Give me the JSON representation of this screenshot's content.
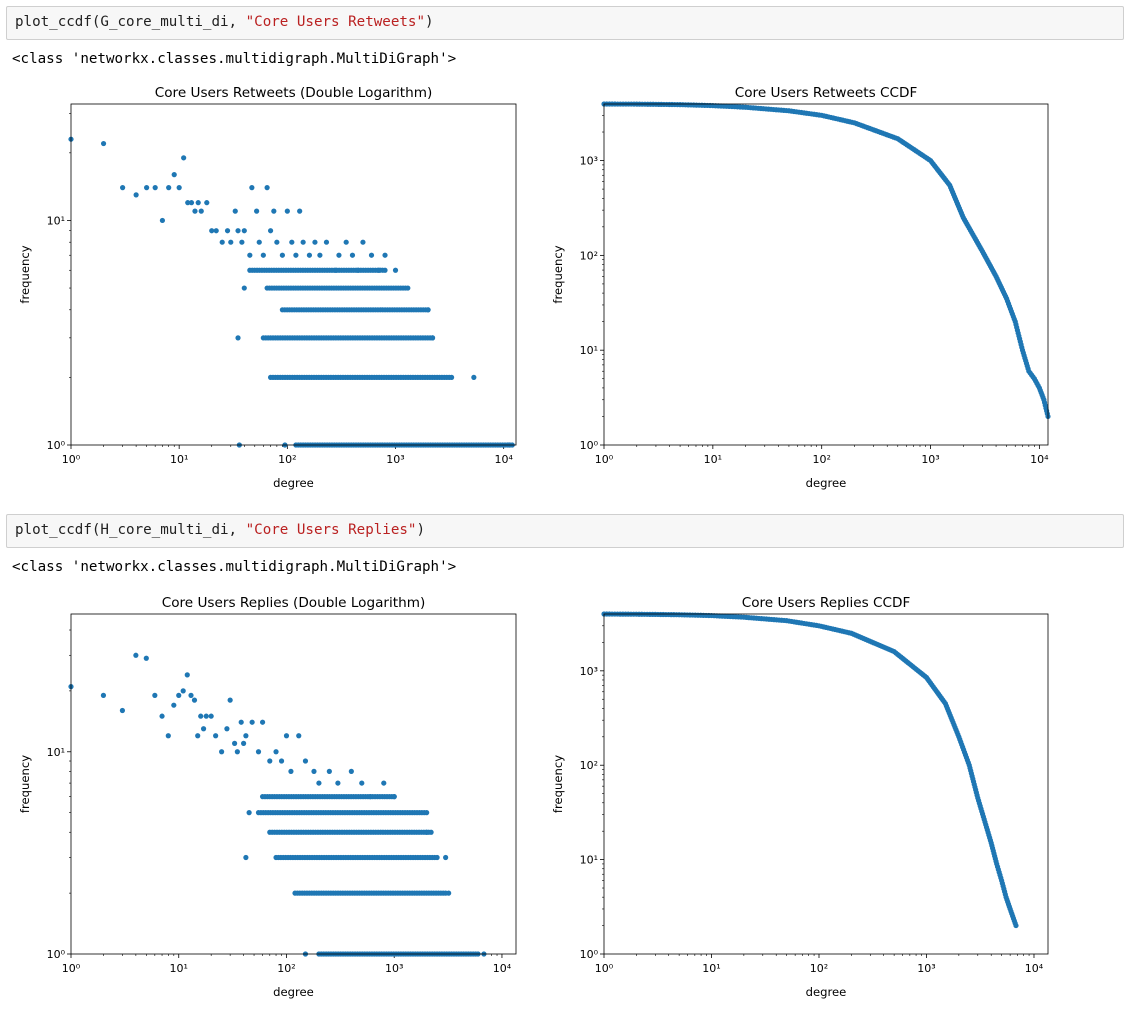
{
  "cells": [
    {
      "code_fn": "plot_ccdf(G_core_multi_di, ",
      "code_str": "\"Core Users Retweets\"",
      "code_end": ")",
      "output": "<class 'networkx.classes.multidigraph.MultiDiGraph'>"
    },
    {
      "code_fn": "plot_ccdf(H_core_multi_di, ",
      "code_str": "\"Core Users Replies\"",
      "code_end": ")",
      "output": "<class 'networkx.classes.multidigraph.MultiDiGraph'>"
    }
  ],
  "chart_data": [
    {
      "type": "scatter",
      "title": "Core Users Retweets (Double Logarithm)",
      "xlabel": "degree",
      "ylabel": "frequency",
      "xscale": "log",
      "yscale": "log",
      "xlim": [
        1,
        13000
      ],
      "ylim": [
        1,
        33
      ],
      "color": "#1f77b4",
      "ticks_x": [
        "10⁰",
        "10¹",
        "10²",
        "10³",
        "10⁴"
      ],
      "ticks_y": [
        "10⁰",
        "10¹"
      ],
      "points": [
        [
          1,
          23
        ],
        [
          2,
          22
        ],
        [
          3,
          14
        ],
        [
          4,
          13
        ],
        [
          5,
          14
        ],
        [
          6,
          14
        ],
        [
          7,
          10
        ],
        [
          8,
          14
        ],
        [
          9,
          16
        ],
        [
          10,
          14
        ],
        [
          11,
          19
        ],
        [
          12,
          12
        ],
        [
          13,
          12
        ],
        [
          14,
          11
        ],
        [
          15,
          12
        ],
        [
          16,
          11
        ],
        [
          18,
          12
        ],
        [
          20,
          9
        ],
        [
          22,
          9
        ],
        [
          25,
          8
        ],
        [
          28,
          9
        ],
        [
          30,
          8
        ],
        [
          33,
          11
        ],
        [
          35,
          9
        ],
        [
          38,
          8
        ],
        [
          40,
          9
        ],
        [
          45,
          7
        ],
        [
          47,
          14
        ],
        [
          52,
          11
        ],
        [
          55,
          8
        ],
        [
          60,
          7
        ],
        [
          65,
          14
        ],
        [
          70,
          9
        ],
        [
          75,
          11
        ],
        [
          80,
          8
        ],
        [
          90,
          7
        ],
        [
          100,
          11
        ],
        [
          110,
          8
        ],
        [
          120,
          7
        ],
        [
          130,
          11
        ],
        [
          140,
          8
        ],
        [
          160,
          7
        ],
        [
          180,
          8
        ],
        [
          200,
          7
        ],
        [
          230,
          8
        ],
        [
          280,
          6
        ],
        [
          300,
          7
        ],
        [
          350,
          8
        ],
        [
          400,
          7
        ],
        [
          450,
          6
        ],
        [
          500,
          8
        ],
        [
          600,
          7
        ],
        [
          700,
          6
        ],
        [
          800,
          7
        ],
        [
          1000,
          6
        ],
        [
          40,
          5
        ],
        [
          2000,
          4
        ],
        [
          35,
          3
        ],
        [
          2200,
          3
        ],
        [
          5300,
          2
        ],
        [
          36,
          1
        ],
        [
          95,
          1
        ],
        [
          11200,
          1
        ]
      ],
      "bands": [
        {
          "y": 6,
          "x": [
            45,
            800
          ]
        },
        {
          "y": 5,
          "x": [
            65,
            1300
          ]
        },
        {
          "y": 4,
          "x": [
            90,
            2000
          ]
        },
        {
          "y": 3,
          "x": [
            60,
            2200
          ]
        },
        {
          "y": 2,
          "x": [
            70,
            3300
          ]
        },
        {
          "y": 1,
          "x": [
            120,
            12000
          ]
        }
      ]
    },
    {
      "type": "scatter",
      "title": "Core Users Retweets CCDF",
      "xlabel": "degree",
      "ylabel": "frequency",
      "xscale": "log",
      "yscale": "log",
      "xlim": [
        1,
        12000
      ],
      "ylim": [
        1,
        3950
      ],
      "color": "#1f77b4",
      "ticks_x": [
        "10⁰",
        "10¹",
        "10²",
        "10³",
        "10⁴"
      ],
      "ticks_y": [
        "10⁰",
        "10¹",
        "10²",
        "10³"
      ],
      "curve": [
        [
          1,
          3950
        ],
        [
          2,
          3940
        ],
        [
          3,
          3920
        ],
        [
          5,
          3890
        ],
        [
          10,
          3800
        ],
        [
          20,
          3650
        ],
        [
          50,
          3350
        ],
        [
          100,
          3000
        ],
        [
          200,
          2500
        ],
        [
          500,
          1700
        ],
        [
          1000,
          1000
        ],
        [
          1500,
          550
        ],
        [
          2000,
          250
        ],
        [
          3000,
          110
        ],
        [
          4000,
          60
        ],
        [
          5000,
          35
        ],
        [
          6000,
          20
        ],
        [
          7000,
          10
        ],
        [
          8000,
          6
        ],
        [
          9000,
          5
        ],
        [
          10000,
          4
        ],
        [
          11000,
          3
        ],
        [
          12000,
          2
        ]
      ]
    },
    {
      "type": "scatter",
      "title": "Core Users Replies (Double Logarithm)",
      "xlabel": "degree",
      "ylabel": "frequency",
      "xscale": "log",
      "yscale": "log",
      "xlim": [
        1,
        13500
      ],
      "ylim": [
        1,
        48
      ],
      "color": "#1f77b4",
      "ticks_x": [
        "10⁰",
        "10¹",
        "10²",
        "10³",
        "10⁴"
      ],
      "ticks_y": [
        "10⁰",
        "10¹"
      ],
      "points": [
        [
          1,
          21
        ],
        [
          2,
          19
        ],
        [
          3,
          16
        ],
        [
          4,
          30
        ],
        [
          5,
          29
        ],
        [
          6,
          19
        ],
        [
          7,
          15
        ],
        [
          8,
          12
        ],
        [
          9,
          17
        ],
        [
          10,
          19
        ],
        [
          11,
          20
        ],
        [
          12,
          24
        ],
        [
          13,
          19
        ],
        [
          14,
          18
        ],
        [
          15,
          12
        ],
        [
          16,
          15
        ],
        [
          17,
          13
        ],
        [
          18,
          15
        ],
        [
          20,
          15
        ],
        [
          22,
          12
        ],
        [
          25,
          10
        ],
        [
          28,
          13
        ],
        [
          30,
          18
        ],
        [
          33,
          11
        ],
        [
          35,
          10
        ],
        [
          38,
          14
        ],
        [
          40,
          11
        ],
        [
          42,
          12
        ],
        [
          48,
          14
        ],
        [
          55,
          10
        ],
        [
          60,
          14
        ],
        [
          70,
          9
        ],
        [
          80,
          10
        ],
        [
          90,
          9
        ],
        [
          100,
          12
        ],
        [
          110,
          8
        ],
        [
          130,
          12
        ],
        [
          150,
          9
        ],
        [
          180,
          8
        ],
        [
          200,
          7
        ],
        [
          250,
          8
        ],
        [
          300,
          7
        ],
        [
          400,
          8
        ],
        [
          500,
          7
        ],
        [
          600,
          6
        ],
        [
          800,
          7
        ],
        [
          1000,
          6
        ],
        [
          45,
          5
        ],
        [
          2000,
          4
        ],
        [
          42,
          3
        ],
        [
          3000,
          3
        ],
        [
          3200,
          2
        ],
        [
          150,
          1
        ],
        [
          6800,
          1
        ]
      ],
      "bands": [
        {
          "y": 6,
          "x": [
            60,
            1000
          ]
        },
        {
          "y": 5,
          "x": [
            55,
            2000
          ]
        },
        {
          "y": 4,
          "x": [
            70,
            2200
          ]
        },
        {
          "y": 3,
          "x": [
            80,
            2500
          ]
        },
        {
          "y": 2,
          "x": [
            120,
            3000
          ]
        },
        {
          "y": 1,
          "x": [
            200,
            6000
          ]
        }
      ]
    },
    {
      "type": "scatter",
      "title": "Core Users Replies CCDF",
      "xlabel": "degree",
      "ylabel": "frequency",
      "xscale": "log",
      "yscale": "log",
      "xlim": [
        1,
        13500
      ],
      "ylim": [
        1,
        4000
      ],
      "color": "#1f77b4",
      "ticks_x": [
        "10⁰",
        "10¹",
        "10²",
        "10³",
        "10⁴"
      ],
      "ticks_y": [
        "10⁰",
        "10¹",
        "10²",
        "10³"
      ],
      "curve": [
        [
          1,
          4000
        ],
        [
          2,
          3980
        ],
        [
          3,
          3960
        ],
        [
          5,
          3930
        ],
        [
          10,
          3850
        ],
        [
          20,
          3700
        ],
        [
          50,
          3400
        ],
        [
          100,
          3000
        ],
        [
          200,
          2500
        ],
        [
          500,
          1600
        ],
        [
          1000,
          850
        ],
        [
          1500,
          450
        ],
        [
          2000,
          200
        ],
        [
          2500,
          100
        ],
        [
          3000,
          45
        ],
        [
          3500,
          25
        ],
        [
          4000,
          15
        ],
        [
          4500,
          9
        ],
        [
          5000,
          6
        ],
        [
          5500,
          4
        ],
        [
          6000,
          3
        ],
        [
          6800,
          2
        ]
      ]
    }
  ]
}
